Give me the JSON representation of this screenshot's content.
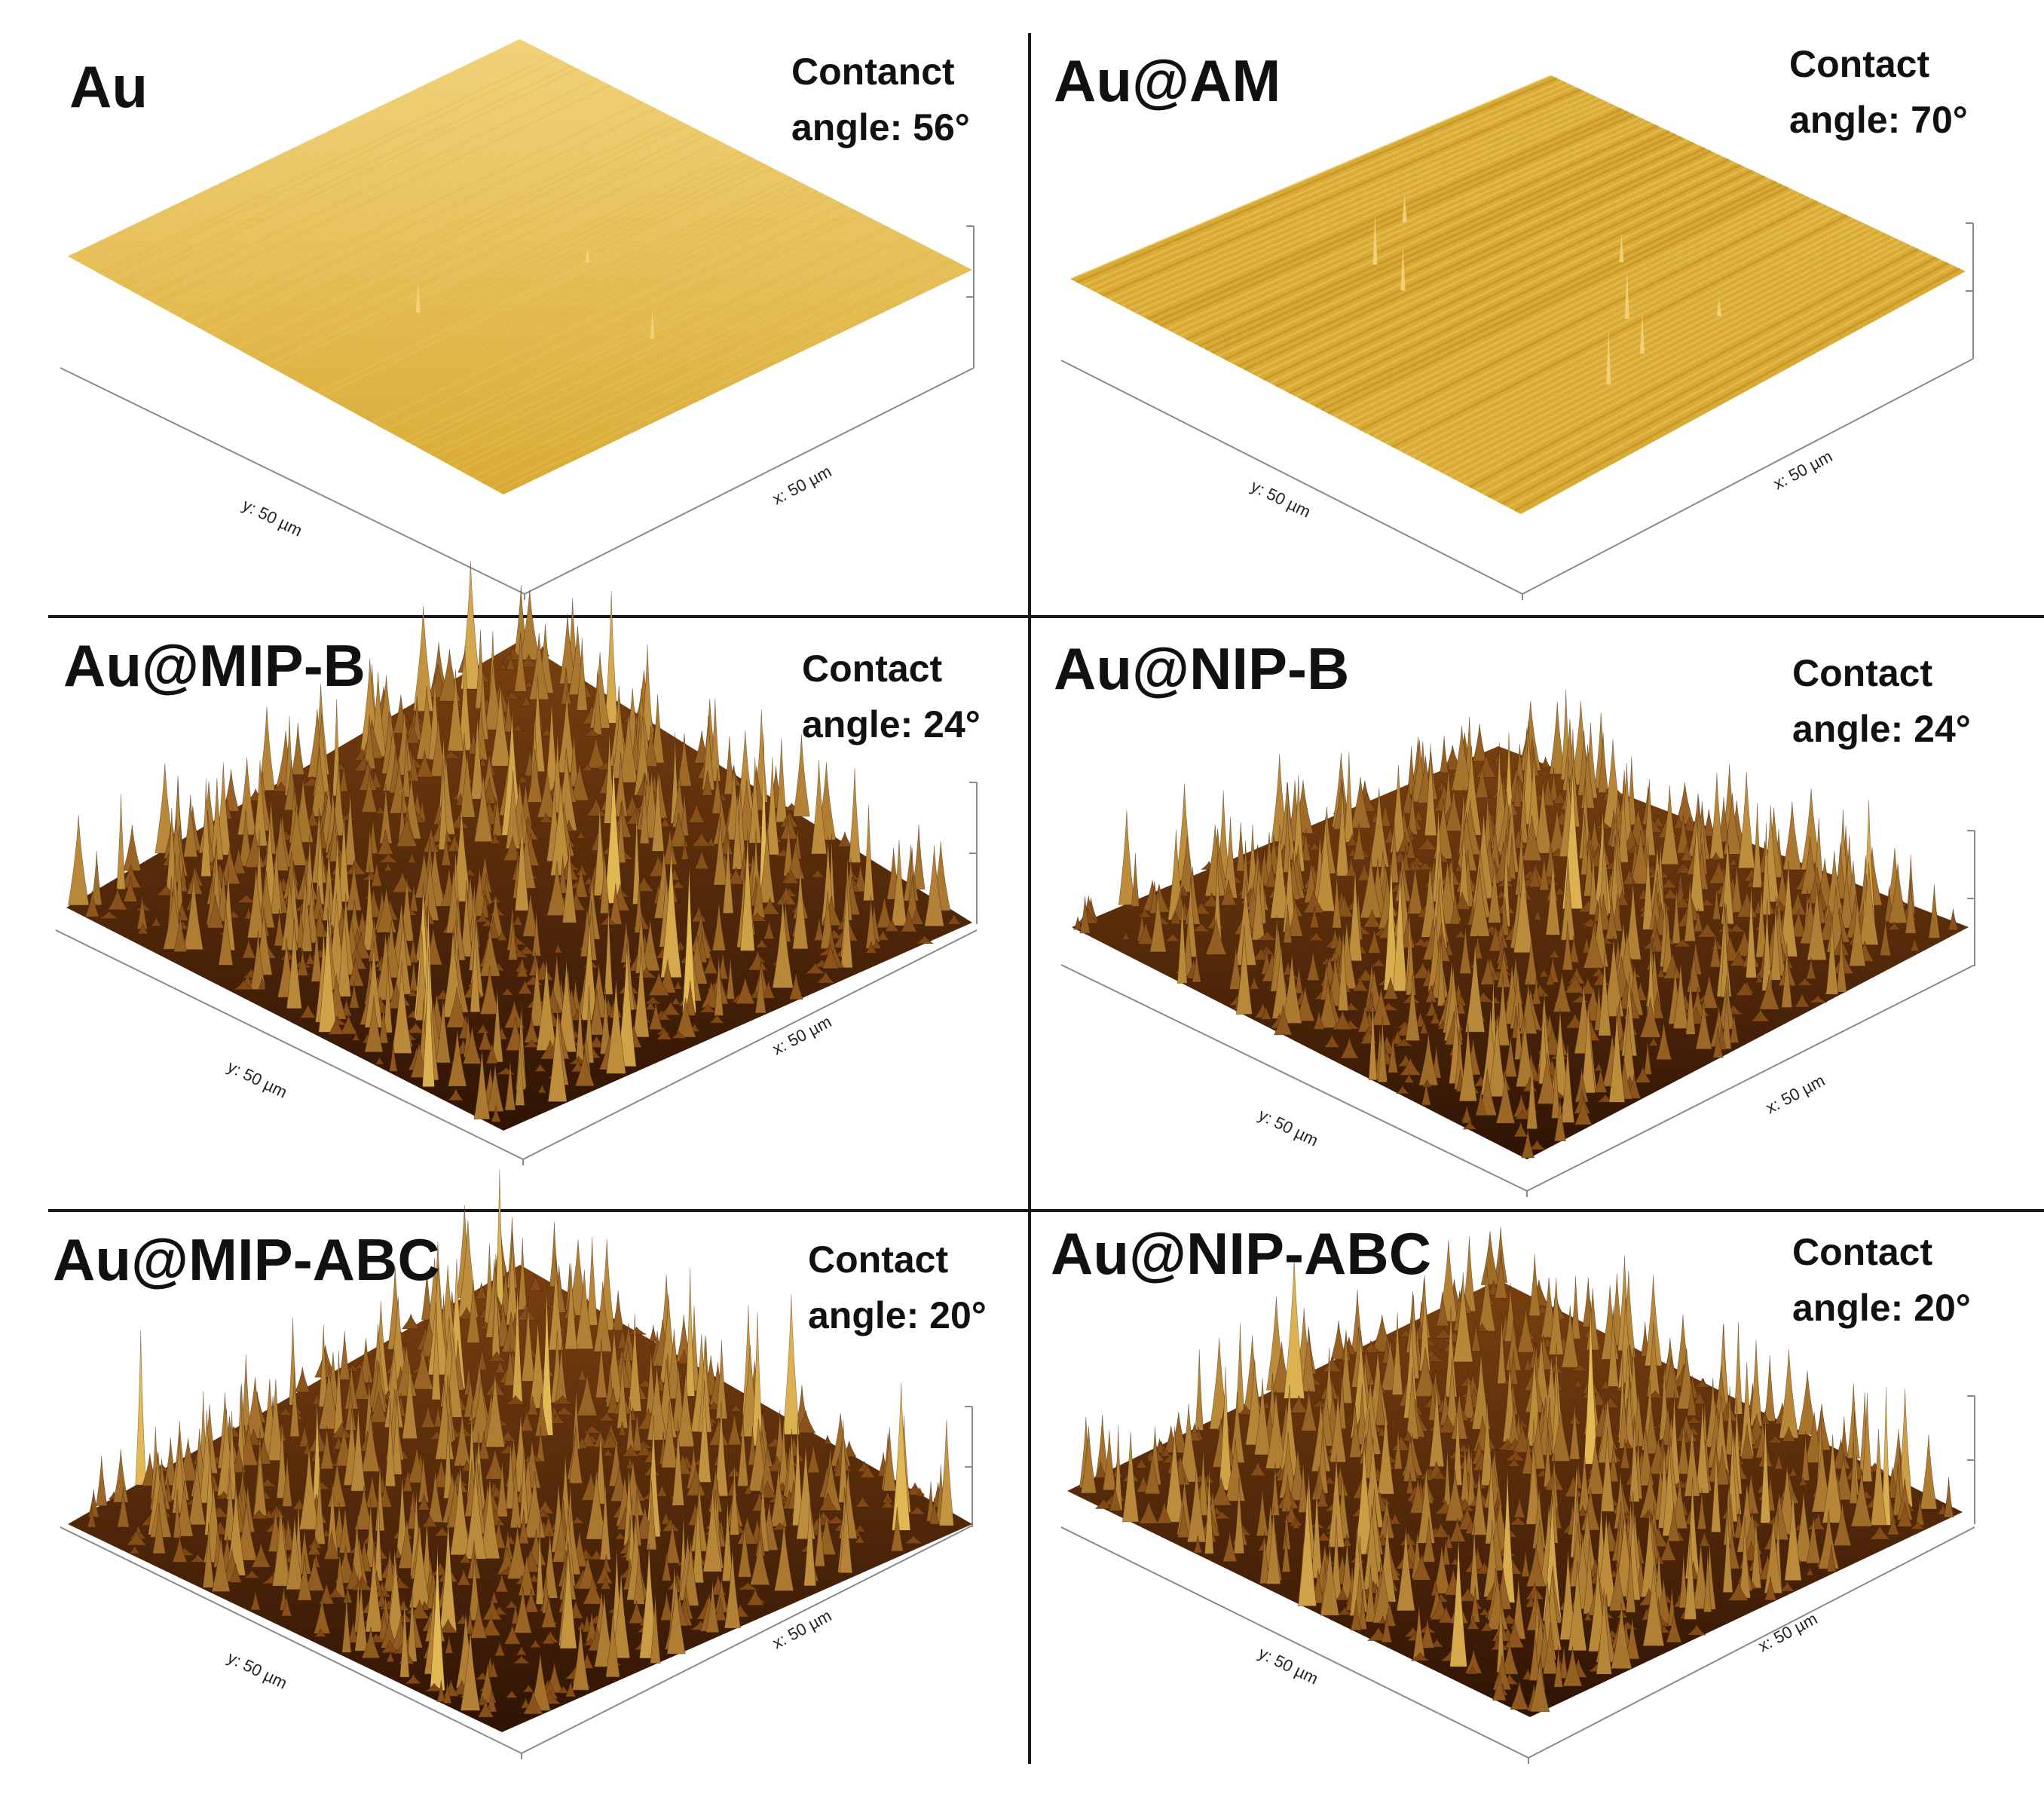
{
  "colors": {
    "gold_light": "#f1d27a",
    "gold_mid": "#d9ab35",
    "gold_dark": "#a87c1e",
    "brown_dark": "#2e1304",
    "brown_mid": "#7a4010",
    "brown_peak": "#e3b955",
    "divider": "#1a1a1a"
  },
  "panels": [
    {
      "sample": "Au",
      "angle_line1": "Contanct",
      "angle_line2": "angle:  56°",
      "x_axis": "x: 50 µm",
      "y_axis": "y: 50 µm",
      "surface": "smooth"
    },
    {
      "sample": "Au@AM",
      "angle_line1": "Contact",
      "angle_line2": "angle: 70°",
      "x_axis": "x: 50 µm",
      "y_axis": "y: 50 µm",
      "surface": "smooth-striated"
    },
    {
      "sample": "Au@MIP-B",
      "angle_line1": "Contact",
      "angle_line2": "angle: 24°",
      "x_axis": "x: 50 µm",
      "y_axis": "y: 50 µm",
      "surface": "rough"
    },
    {
      "sample": "Au@NIP-B",
      "angle_line1": "Contact",
      "angle_line2": "angle: 24°",
      "x_axis": "x: 50 µm",
      "y_axis": "y: 50 µm",
      "surface": "rough"
    },
    {
      "sample": "Au@MIP-ABC",
      "angle_line1": "Contact",
      "angle_line2": "angle: 20°",
      "x_axis": "x: 50 µm",
      "y_axis": "y: 50 µm",
      "surface": "rough"
    },
    {
      "sample": "Au@NIP-ABC",
      "angle_line1": "Contact",
      "angle_line2": "angle: 20°",
      "x_axis": "x: 50 µm",
      "y_axis": "y: 50 µm",
      "surface": "rough"
    }
  ]
}
